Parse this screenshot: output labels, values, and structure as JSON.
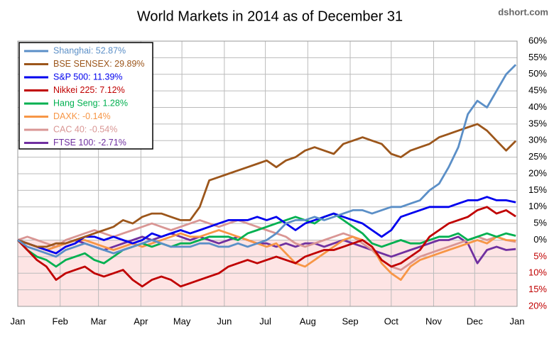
{
  "chart_data": {
    "type": "line",
    "title": "World Markets in 2014 as of December 31",
    "source": "dshort.com",
    "x": [
      0,
      7,
      14,
      21,
      28,
      35,
      42,
      49,
      56,
      63,
      70,
      77,
      84,
      91,
      98,
      105,
      112,
      119,
      126,
      133,
      140,
      147,
      154,
      161,
      168,
      175,
      182,
      189,
      196,
      203,
      210,
      217,
      224,
      231,
      238,
      245,
      252,
      259,
      266,
      273,
      280,
      287,
      294,
      301,
      308,
      315,
      322,
      329,
      336,
      343,
      350,
      357,
      364
    ],
    "xlim": [
      0,
      365
    ],
    "xticks": [
      {
        "value": 0,
        "label": "Jan"
      },
      {
        "value": 31,
        "label": "Feb"
      },
      {
        "value": 59,
        "label": "Mar"
      },
      {
        "value": 90,
        "label": "Apr"
      },
      {
        "value": 120,
        "label": "May"
      },
      {
        "value": 151,
        "label": "Jun"
      },
      {
        "value": 181,
        "label": "Jul"
      },
      {
        "value": 212,
        "label": "Aug"
      },
      {
        "value": 243,
        "label": "Sep"
      },
      {
        "value": 273,
        "label": "Oct"
      },
      {
        "value": 304,
        "label": "Nov"
      },
      {
        "value": 334,
        "label": "Dec"
      },
      {
        "value": 365,
        "label": "Jan"
      }
    ],
    "ylim": [
      -20,
      60
    ],
    "yticks": [
      {
        "value": -20,
        "label": "20%"
      },
      {
        "value": -15,
        "label": "15%"
      },
      {
        "value": -10,
        "label": "10%"
      },
      {
        "value": -5,
        "label": "5%"
      },
      {
        "value": 0,
        "label": "0%"
      },
      {
        "value": 5,
        "label": "5%"
      },
      {
        "value": 10,
        "label": "10%"
      },
      {
        "value": 15,
        "label": "15%"
      },
      {
        "value": 20,
        "label": "20%"
      },
      {
        "value": 25,
        "label": "25%"
      },
      {
        "value": 30,
        "label": "30%"
      },
      {
        "value": 35,
        "label": "35%"
      },
      {
        "value": 40,
        "label": "40%"
      },
      {
        "value": 45,
        "label": "45%"
      },
      {
        "value": 50,
        "label": "50%"
      },
      {
        "value": 55,
        "label": "55%"
      },
      {
        "value": 60,
        "label": "60%"
      }
    ],
    "grid": true,
    "legend": "top-left",
    "series": [
      {
        "name": "Shanghai: 52.87%",
        "color": "#5b8fc7",
        "values": [
          0,
          -2,
          -3,
          -4,
          -5,
          -3,
          -2,
          -1,
          -2,
          -3,
          -4,
          -3,
          -2,
          -1,
          0,
          -1,
          -2,
          -2,
          -2,
          -1,
          -1,
          -2,
          -2,
          -1,
          -2,
          -1,
          0,
          2,
          5,
          6,
          6,
          7,
          6,
          7,
          8,
          9,
          9,
          8,
          9,
          10,
          10,
          11,
          12,
          15,
          17,
          22,
          28,
          38,
          42,
          40,
          45,
          50,
          52.87
        ]
      },
      {
        "name": "BSE SENSEX: 29.89%",
        "color": "#9c561b",
        "values": [
          0,
          -1,
          -2,
          -2,
          -1,
          -1,
          0,
          1,
          2,
          3,
          4,
          6,
          5,
          7,
          8,
          8,
          7,
          6,
          6,
          10,
          18,
          19,
          20,
          21,
          22,
          23,
          24,
          22,
          24,
          25,
          27,
          28,
          27,
          26,
          29,
          30,
          31,
          30,
          29,
          26,
          25,
          27,
          28,
          29,
          31,
          32,
          33,
          34,
          35,
          33,
          30,
          27,
          29.89
        ]
      },
      {
        "name": "S&P 500: 11.39%",
        "color": "#0000ee",
        "values": [
          0,
          -1,
          -2,
          -3,
          -4,
          -2,
          -1,
          1,
          1,
          0,
          1,
          0,
          -1,
          0,
          2,
          1,
          2,
          3,
          2,
          3,
          4,
          5,
          6,
          6,
          6,
          7,
          6,
          7,
          5,
          3,
          5,
          6,
          7,
          8,
          7,
          6,
          5,
          3,
          1,
          3,
          7,
          8,
          9,
          10,
          10,
          10,
          11,
          12,
          12,
          13,
          12,
          12,
          11.39
        ]
      },
      {
        "name": "Nikkei 225: 7.12%",
        "color": "#c00000",
        "values": [
          0,
          -3,
          -6,
          -8,
          -12,
          -10,
          -9,
          -8,
          -10,
          -11,
          -10,
          -9,
          -12,
          -14,
          -12,
          -11,
          -12,
          -14,
          -13,
          -12,
          -11,
          -10,
          -8,
          -7,
          -6,
          -7,
          -6,
          -5,
          -6,
          -7,
          -5,
          -4,
          -3,
          -3,
          -2,
          -1,
          0,
          -2,
          -6,
          -8,
          -7,
          -5,
          -3,
          1,
          3,
          5,
          6,
          7,
          9,
          10,
          8,
          9,
          7.12
        ]
      },
      {
        "name": "Hang Seng: 1.28%",
        "color": "#00b050",
        "values": [
          0,
          -3,
          -5,
          -6,
          -8,
          -6,
          -5,
          -4,
          -6,
          -7,
          -5,
          -3,
          -2,
          -1,
          -2,
          -1,
          -2,
          -1,
          -1,
          0,
          1,
          1,
          1,
          0,
          2,
          3,
          4,
          5,
          6,
          7,
          6,
          5,
          7,
          8,
          6,
          4,
          2,
          -1,
          -2,
          -1,
          0,
          -1,
          -1,
          0,
          1,
          1,
          2,
          0,
          1,
          2,
          1,
          2,
          1.28
        ]
      },
      {
        "name": "DAXK: -0.14%",
        "color": "#f79646",
        "values": [
          0,
          -1,
          -2,
          -3,
          -2,
          -1,
          0,
          0,
          -1,
          -2,
          -3,
          -2,
          -1,
          -2,
          -1,
          0,
          1,
          2,
          1,
          1,
          2,
          3,
          2,
          1,
          0,
          -1,
          -2,
          -1,
          -4,
          -7,
          -8,
          -6,
          -4,
          -2,
          0,
          1,
          0,
          -2,
          -7,
          -10,
          -12,
          -8,
          -6,
          -5,
          -4,
          -3,
          -2,
          -1,
          0,
          -1,
          1,
          0,
          -0.14
        ]
      },
      {
        "name": "CAC 40: -0.54%",
        "color": "#d99694",
        "values": [
          0,
          1,
          0,
          -1,
          -2,
          0,
          1,
          2,
          3,
          2,
          1,
          2,
          3,
          4,
          5,
          4,
          3,
          4,
          5,
          6,
          5,
          4,
          5,
          6,
          5,
          4,
          3,
          2,
          1,
          -1,
          -2,
          -1,
          0,
          1,
          2,
          1,
          -1,
          -3,
          -6,
          -8,
          -9,
          -7,
          -5,
          -4,
          -3,
          -2,
          -1,
          0,
          1,
          0,
          1,
          0,
          -0.54
        ]
      },
      {
        "name": "FTSE 100: -2.71%",
        "color": "#7030a0",
        "values": [
          0,
          -1,
          -2,
          -3,
          -2,
          -1,
          0,
          -1,
          -2,
          -3,
          -2,
          -1,
          0,
          1,
          0,
          1,
          2,
          1,
          0,
          1,
          0,
          -1,
          0,
          1,
          0,
          -1,
          -1,
          -2,
          -1,
          -2,
          -1,
          -1,
          -2,
          -1,
          0,
          -1,
          -2,
          -3,
          -4,
          -5,
          -4,
          -3,
          -2,
          -1,
          0,
          0,
          1,
          -1,
          -7,
          -3,
          -2,
          -3,
          -2.71
        ]
      }
    ]
  }
}
